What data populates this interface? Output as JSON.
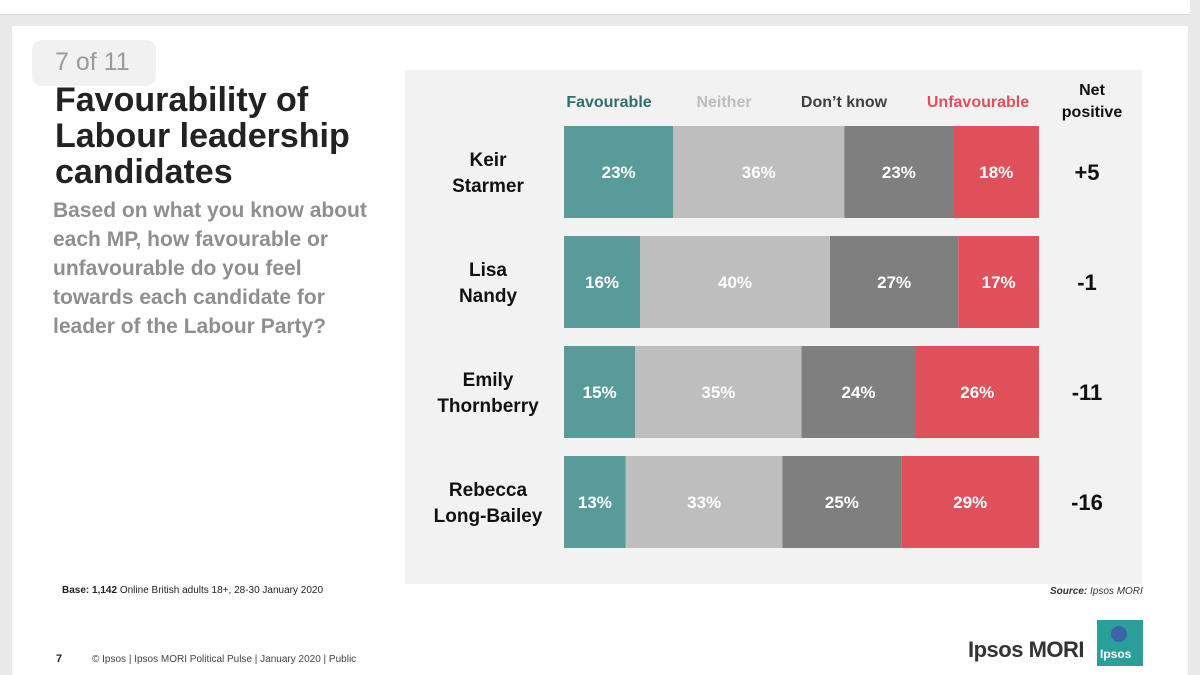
{
  "slide": {
    "page_count": "7 of 11",
    "title": "Favourability of Labour leadership candidates",
    "question": "Based on what you know about each MP, how favourable or unfavourable do you feel towards each candidate for leader of the Labour Party?",
    "base_label": "Base:",
    "base_count": "1,142",
    "base_text": "Online British adults 18+, 28-30 January 2020",
    "source_label": "Source:",
    "source_text": "Ipsos MORI",
    "footer_page": "7",
    "footer_text": "© Ipsos | Ipsos MORI Political Pulse | January 2020 | Public",
    "brand": "Ipsos MORI",
    "logo_text": "Ipsos"
  },
  "colors": {
    "favourable": "#599a9a",
    "neither": "#bebebe",
    "dont_know": "#7f7f7f",
    "unfavourable": "#e0505b",
    "favourable_text": "#2f6e6c",
    "neither_text": "#bdbdbd",
    "dont_know_text": "#3f3f3f",
    "unfavourable_text": "#e0505b"
  },
  "chart_data": {
    "type": "bar",
    "orientation": "horizontal",
    "stacked": true,
    "normalized_100": true,
    "categories": [
      "Keir Starmer",
      "Lisa Nandy",
      "Emily Thornberry",
      "Rebecca Long-Bailey"
    ],
    "category_lines": [
      [
        "Keir",
        "Starmer"
      ],
      [
        "Lisa",
        "Nandy"
      ],
      [
        "Emily",
        "Thornberry"
      ],
      [
        "Rebecca",
        "Long-Bailey"
      ]
    ],
    "series": [
      {
        "name": "Favourable",
        "values": [
          23,
          16,
          15,
          13
        ]
      },
      {
        "name": "Neither",
        "values": [
          36,
          40,
          35,
          33
        ]
      },
      {
        "name": "Don’t know",
        "values": [
          23,
          27,
          24,
          25
        ]
      },
      {
        "name": "Unfavourable",
        "values": [
          18,
          17,
          26,
          29
        ]
      }
    ],
    "net_header": [
      "Net",
      "positive"
    ],
    "net_positive": [
      "+5",
      "-1",
      "-11",
      "-16"
    ],
    "value_suffix": "%",
    "legend_position": "top"
  }
}
